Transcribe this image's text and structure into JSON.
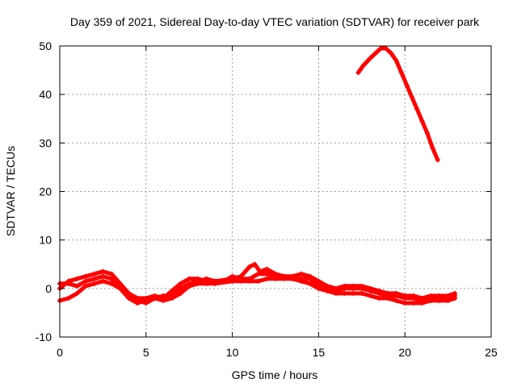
{
  "chart_data": {
    "type": "scatter",
    "title": "Day 359 of 2021, Sidereal Day-to-day VTEC variation (SDTVAR) for receiver park",
    "xlabel": "GPS time / hours",
    "ylabel": "SDTVAR / TECUs",
    "xlim": [
      0,
      25
    ],
    "ylim": [
      -10,
      50
    ],
    "xticks": [
      0,
      5,
      10,
      15,
      20,
      25
    ],
    "yticks": [
      -10,
      0,
      10,
      20,
      30,
      40,
      50
    ],
    "grid": true,
    "series_color": "#ff0000",
    "series": [
      {
        "name": "band-upper",
        "points": [
          [
            0,
            0
          ],
          [
            0.5,
            1.5
          ],
          [
            1,
            2
          ],
          [
            1.5,
            2.5
          ],
          [
            2,
            3
          ],
          [
            2.5,
            3.5
          ],
          [
            3,
            3
          ],
          [
            3.5,
            1
          ],
          [
            4,
            -1
          ],
          [
            4.5,
            -2
          ],
          [
            5,
            -2
          ],
          [
            5.5,
            -1.5
          ],
          [
            6,
            -2
          ],
          [
            6.5,
            -0.5
          ],
          [
            7,
            1
          ],
          [
            7.5,
            2
          ],
          [
            8,
            2
          ],
          [
            8.5,
            1.5
          ],
          [
            9,
            1.5
          ],
          [
            10,
            2
          ],
          [
            10.5,
            2.5
          ],
          [
            11,
            4.5
          ],
          [
            11.3,
            5
          ],
          [
            11.6,
            3.5
          ],
          [
            12,
            4
          ],
          [
            12.5,
            3
          ],
          [
            13,
            2.5
          ],
          [
            13.5,
            2.5
          ],
          [
            14,
            3
          ],
          [
            14.5,
            2.5
          ],
          [
            15,
            1.5
          ],
          [
            15.5,
            0.5
          ],
          [
            16,
            0
          ],
          [
            16.5,
            0.5
          ],
          [
            17,
            0.5
          ],
          [
            17.5,
            0.5
          ],
          [
            18,
            0
          ],
          [
            18.5,
            -0.5
          ],
          [
            19,
            -1
          ],
          [
            19.5,
            -1
          ],
          [
            20,
            -1.5
          ],
          [
            20.5,
            -1.5
          ],
          [
            21,
            -2
          ],
          [
            21.5,
            -1.5
          ],
          [
            22,
            -1.5
          ],
          [
            22.5,
            -1.5
          ],
          [
            22.9,
            -1
          ]
        ]
      },
      {
        "name": "band-lower",
        "points": [
          [
            0,
            -2.5
          ],
          [
            0.5,
            -2
          ],
          [
            1,
            -1
          ],
          [
            1.5,
            0.5
          ],
          [
            2,
            1
          ],
          [
            2.5,
            1.5
          ],
          [
            3,
            1
          ],
          [
            3.5,
            0
          ],
          [
            4,
            -2
          ],
          [
            4.5,
            -3
          ],
          [
            5,
            -2.5
          ],
          [
            5.5,
            -2
          ],
          [
            6,
            -2.5
          ],
          [
            6.5,
            -2
          ],
          [
            7,
            -1
          ],
          [
            7.5,
            0.5
          ],
          [
            8,
            1
          ],
          [
            8.5,
            1
          ],
          [
            9,
            1
          ],
          [
            10,
            1.5
          ],
          [
            10.5,
            1.5
          ],
          [
            11,
            1.5
          ],
          [
            11.5,
            1.5
          ],
          [
            12,
            2
          ],
          [
            12.5,
            2
          ],
          [
            13,
            2
          ],
          [
            13.5,
            2
          ],
          [
            14,
            1.5
          ],
          [
            14.5,
            1
          ],
          [
            15,
            0
          ],
          [
            15.5,
            -0.5
          ],
          [
            16,
            -1
          ],
          [
            16.5,
            -1
          ],
          [
            17,
            -1
          ],
          [
            17.5,
            -1
          ],
          [
            18,
            -1.5
          ],
          [
            18.5,
            -2
          ],
          [
            19,
            -2
          ],
          [
            19.5,
            -2.5
          ],
          [
            20,
            -3
          ],
          [
            20.5,
            -3
          ],
          [
            21,
            -3
          ],
          [
            21.5,
            -2.5
          ],
          [
            22,
            -2.5
          ],
          [
            22.5,
            -2.5
          ],
          [
            22.9,
            -2
          ]
        ]
      },
      {
        "name": "band-middle",
        "points": [
          [
            0,
            1
          ],
          [
            0.5,
            1
          ],
          [
            1,
            0.5
          ],
          [
            1.5,
            1.5
          ],
          [
            2,
            2
          ],
          [
            2.5,
            2.5
          ],
          [
            3,
            2
          ],
          [
            3.5,
            0
          ],
          [
            4,
            -1.5
          ],
          [
            4.5,
            -2.5
          ],
          [
            5,
            -3
          ],
          [
            5.5,
            -2
          ],
          [
            6,
            -1.5
          ],
          [
            6.5,
            -1.5
          ],
          [
            7,
            0
          ],
          [
            7.5,
            1
          ],
          [
            8,
            1.5
          ],
          [
            8.5,
            2
          ],
          [
            9,
            1.5
          ],
          [
            9.5,
            1.5
          ],
          [
            10,
            2.5
          ],
          [
            10.5,
            2
          ],
          [
            11,
            2
          ],
          [
            11.5,
            3
          ],
          [
            12,
            3
          ],
          [
            12.5,
            2.5
          ],
          [
            13,
            2.5
          ],
          [
            13.5,
            2
          ],
          [
            14,
            2
          ],
          [
            14.5,
            2
          ],
          [
            15,
            0.5
          ],
          [
            15.5,
            0
          ],
          [
            16,
            -0.5
          ],
          [
            16.5,
            0
          ],
          [
            17,
            0
          ],
          [
            17.5,
            0
          ],
          [
            18,
            -0.5
          ],
          [
            18.5,
            -1
          ],
          [
            19,
            -1.5
          ],
          [
            19.5,
            -1.5
          ],
          [
            20,
            -2
          ],
          [
            20.5,
            -2
          ],
          [
            21,
            -2.5
          ],
          [
            21.5,
            -2
          ],
          [
            22,
            -2
          ],
          [
            22.5,
            -2
          ],
          [
            22.9,
            -1.5
          ]
        ]
      },
      {
        "name": "peak",
        "points": [
          [
            17.3,
            44.5
          ],
          [
            17.6,
            46
          ],
          [
            18,
            47.5
          ],
          [
            18.3,
            48.5
          ],
          [
            18.6,
            49.5
          ],
          [
            18.9,
            49.5
          ],
          [
            19.2,
            48.5
          ],
          [
            19.5,
            47
          ],
          [
            19.8,
            44.5
          ],
          [
            20.1,
            42
          ],
          [
            20.4,
            39.5
          ],
          [
            20.7,
            37
          ],
          [
            21,
            34.5
          ],
          [
            21.3,
            32
          ],
          [
            21.6,
            29
          ],
          [
            21.9,
            26.5
          ]
        ]
      }
    ]
  }
}
